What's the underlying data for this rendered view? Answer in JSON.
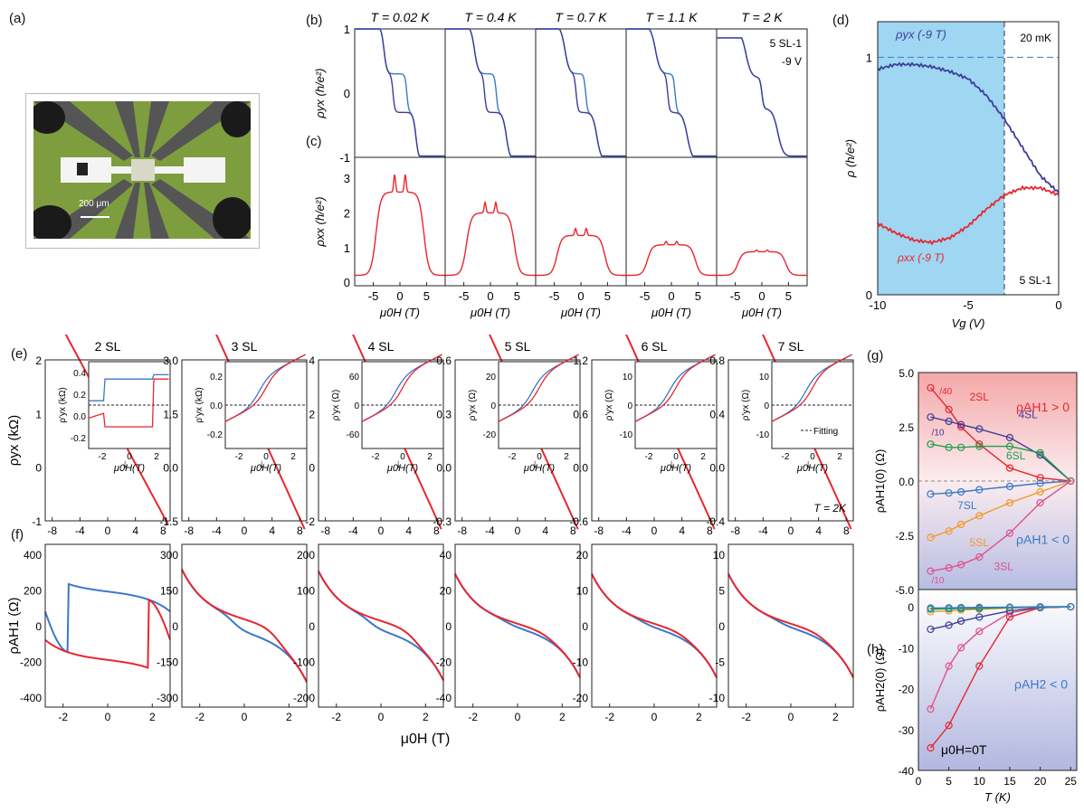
{
  "panel_labels": {
    "a": "(a)",
    "b": "(b)",
    "c": "(c)",
    "d": "(d)",
    "e": "(e)",
    "f": "(f)",
    "g": "(g)",
    "h": "(h)"
  },
  "panel_a": {
    "scale_bar": "200 μm"
  },
  "panel_b": {
    "temps": [
      "T = 0.02 K",
      "T = 0.4 K",
      "T = 0.7 K",
      "T = 1.1 K",
      "T = 2 K"
    ],
    "ylabel": "ρyx (h/e²)",
    "yticks": [
      "1",
      "0",
      "-1"
    ],
    "note1": "5 SL-1",
    "note2": "-9 V"
  },
  "panel_c": {
    "ylabel": "ρxx (h/e²)",
    "yticks": [
      "3",
      "2",
      "1",
      "0"
    ],
    "xticks": [
      "-5",
      "0",
      "5"
    ],
    "xlabel": "μ0H (T)"
  },
  "panel_d": {
    "ylabel": "ρ (h/e²)",
    "xlabel": "Vg (V)",
    "xticks": [
      "-10",
      "-5",
      "0"
    ],
    "yticks": [
      "1",
      "0"
    ],
    "curve1": "ρyx (-9 T)",
    "curve2": "ρxx (-9 T)",
    "note1": "20 mK",
    "note2": "5 SL-1"
  },
  "panel_e": {
    "titles": [
      "2 SL",
      "3 SL",
      "4 SL",
      "5 SL",
      "6 SL",
      "7 SL"
    ],
    "ylabel": "ρyx (kΩ)",
    "yticks": [
      [
        "2",
        "1",
        "0",
        "-1"
      ],
      [
        "3.0",
        "1.5",
        "0.0",
        "-1.5"
      ],
      [
        "4",
        "2",
        "0",
        "-2"
      ],
      [
        "0.6",
        "0.3",
        "0.0",
        "-0.3"
      ],
      [
        "1.2",
        "0.6",
        "0.0",
        "-0.6"
      ],
      [
        "0.8",
        "0.4",
        "0.0",
        "-0.4"
      ]
    ],
    "xticks": [
      "-8",
      "-4",
      "0",
      "4",
      "8"
    ],
    "inset_ylabels": [
      "ρ'yx (kΩ)",
      "ρ'yx (kΩ)",
      "ρ'yx (Ω)",
      "ρ'yx (Ω)",
      "ρ'yx (Ω)",
      "ρ'yx (Ω)"
    ],
    "inset_yticks": [
      [
        "0.4",
        "0.2",
        "0.0",
        "-0.2"
      ],
      [
        "0.2",
        "0.0",
        "-0.2"
      ],
      [
        "60",
        "0",
        "-60"
      ],
      [
        "20",
        "0",
        "-20"
      ],
      [
        "10",
        "0",
        "-10"
      ],
      [
        "10",
        "0",
        "-10"
      ]
    ],
    "inset_xticks": [
      "-2",
      "0",
      "2"
    ],
    "inset_xlabel": "μ0H(T)",
    "fitting_label": "Fitting",
    "temp_note": "T = 2K"
  },
  "panel_f": {
    "ylabel": "ρAH1 (Ω)",
    "xlabel": "μ0H (T)",
    "yticks": [
      [
        "400",
        "200",
        "0",
        "-200",
        "-400"
      ],
      [
        "300",
        "150",
        "0",
        "-150",
        "-300"
      ],
      [
        "200",
        "100",
        "0",
        "-100",
        "-200"
      ],
      [
        "40",
        "20",
        "0",
        "-20",
        "-40"
      ],
      [
        "20",
        "10",
        "0",
        "-10",
        "-20"
      ],
      [
        "10",
        "5",
        "0",
        "-5",
        "-10"
      ]
    ],
    "xticks": [
      "-2",
      "0",
      "2"
    ]
  },
  "panel_g": {
    "ylabel": "ρAH1(0) (Ω)",
    "yticks": [
      "5.0",
      "2.5",
      "0.0",
      "-2.5",
      "-5.0"
    ],
    "pos_note": "ρAH1 > 0",
    "neg_note": "ρAH1 < 0",
    "series_labels": [
      "2SL",
      "4SL",
      "6SL",
      "7SL",
      "5SL",
      "3SL"
    ],
    "scale_notes": [
      "/40",
      "/10",
      "/10"
    ]
  },
  "panel_h": {
    "ylabel": "ρAH2(0) (Ω)",
    "yticks": [
      "0",
      "-10",
      "-20",
      "-30",
      "-40"
    ],
    "xticks": [
      "0",
      "5",
      "10",
      "15",
      "20",
      "25"
    ],
    "xlabel": "T (K)",
    "neg_note": "ρAH2 < 0",
    "field_note": "μ0H=0T"
  },
  "colors": {
    "red": "#e8262f",
    "blue": "#3a78c8",
    "navy": "#3d3d9a",
    "green": "#1fa04a",
    "orange": "#f19a25",
    "pink": "#e0508c",
    "cyan": "#9fd6f2"
  },
  "chart_data": [
    {
      "id": "g",
      "type": "line",
      "xlabel": "T (K)",
      "ylabel": "ρAH1(0) (Ω)",
      "ylim": [
        -5,
        5
      ],
      "xlim": [
        0,
        26
      ],
      "series": [
        {
          "name": "2SL",
          "color": "#e8262f",
          "x": [
            2,
            5,
            7,
            10,
            15,
            20,
            25
          ],
          "y": [
            4.3,
            3.3,
            2.5,
            1.7,
            0.6,
            0.15,
            0
          ]
        },
        {
          "name": "4SL",
          "color": "#3d3d9a",
          "x": [
            2,
            5,
            7,
            10,
            15,
            20,
            25
          ],
          "y": [
            2.95,
            2.75,
            2.6,
            2.4,
            2.0,
            1.2,
            0
          ]
        },
        {
          "name": "6SL",
          "color": "#1fa04a",
          "x": [
            2,
            5,
            7,
            10,
            15,
            20,
            25
          ],
          "y": [
            1.7,
            1.55,
            1.55,
            1.6,
            1.6,
            1.3,
            0
          ]
        },
        {
          "name": "7SL",
          "color": "#3a78c8",
          "x": [
            2,
            5,
            7,
            10,
            15,
            20,
            25
          ],
          "y": [
            -0.6,
            -0.55,
            -0.5,
            -0.4,
            -0.25,
            -0.1,
            0
          ]
        },
        {
          "name": "5SL",
          "color": "#f19a25",
          "x": [
            2,
            5,
            7,
            10,
            15,
            20,
            25
          ],
          "y": [
            -2.6,
            -2.3,
            -2.0,
            -1.6,
            -1.0,
            -0.5,
            0
          ]
        },
        {
          "name": "3SL",
          "color": "#e0508c",
          "x": [
            2,
            5,
            7,
            10,
            15,
            20,
            25
          ],
          "y": [
            -4.15,
            -4.0,
            -3.85,
            -3.5,
            -2.4,
            -1.0,
            0
          ]
        }
      ]
    },
    {
      "id": "h",
      "type": "line",
      "xlabel": "T (K)",
      "ylabel": "ρAH2(0) (Ω)",
      "ylim": [
        -40,
        2
      ],
      "xlim": [
        0,
        26
      ],
      "series": [
        {
          "name": "2SL",
          "color": "#e8262f",
          "x": [
            2,
            5,
            10,
            15,
            20,
            25
          ],
          "y": [
            -34.5,
            -29,
            -14.5,
            -2.5,
            -0.2,
            0
          ]
        },
        {
          "name": "3SL",
          "color": "#e0508c",
          "x": [
            2,
            5,
            7,
            10,
            15,
            20,
            25
          ],
          "y": [
            -25,
            -14.5,
            -10,
            -6,
            -1.5,
            -0.2,
            0
          ]
        },
        {
          "name": "4SL",
          "color": "#3d3d9a",
          "x": [
            2,
            5,
            7,
            10,
            15,
            20,
            25
          ],
          "y": [
            -5.5,
            -4.5,
            -3.5,
            -2.5,
            -1,
            -0.2,
            0
          ]
        },
        {
          "name": "5SL",
          "color": "#f19a25",
          "x": [
            2,
            5,
            7,
            10,
            15,
            20,
            25
          ],
          "y": [
            -1.2,
            -1.0,
            -0.8,
            -0.6,
            -0.3,
            -0.1,
            0
          ]
        },
        {
          "name": "6SL",
          "color": "#1fa04a",
          "x": [
            2,
            5,
            7,
            10,
            15,
            20,
            25
          ],
          "y": [
            -0.6,
            -0.5,
            -0.45,
            -0.4,
            -0.2,
            -0.1,
            0
          ]
        },
        {
          "name": "7SL",
          "color": "#3a78c8",
          "x": [
            2,
            5,
            7,
            10,
            15,
            20,
            25
          ],
          "y": [
            -0.3,
            -0.25,
            -0.2,
            -0.15,
            -0.1,
            0,
            0
          ]
        }
      ]
    },
    {
      "id": "d",
      "type": "line",
      "xlabel": "Vg (V)",
      "ylabel": "ρ (h/e²)",
      "xlim": [
        -10,
        0
      ],
      "ylim": [
        0,
        1.15
      ],
      "series": [
        {
          "name": "ρyx (-9 T)",
          "color": "#3d3d9a",
          "x": [
            -10,
            -9,
            -8,
            -7,
            -6,
            -5,
            -4,
            -3,
            -2,
            -1,
            0
          ],
          "y": [
            0.95,
            0.97,
            0.97,
            0.96,
            0.94,
            0.91,
            0.84,
            0.74,
            0.62,
            0.5,
            0.43
          ]
        },
        {
          "name": "ρxx (-9 T)",
          "color": "#e8262f",
          "x": [
            -10,
            -9,
            -8,
            -7,
            -6,
            -5,
            -4,
            -3,
            -2,
            -1,
            0
          ],
          "y": [
            0.3,
            0.26,
            0.23,
            0.22,
            0.24,
            0.29,
            0.36,
            0.42,
            0.45,
            0.45,
            0.42
          ]
        }
      ]
    }
  ]
}
